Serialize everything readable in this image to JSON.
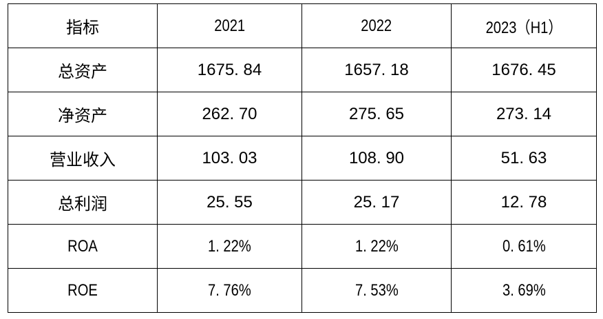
{
  "chart_data": {
    "type": "table",
    "title": "",
    "columns": [
      "指标",
      "2021",
      "2022",
      "2023（H1）"
    ],
    "rows": [
      {
        "label": "总资产",
        "values": [
          "1675. 84",
          "1657. 18",
          "1676. 45"
        ]
      },
      {
        "label": "净资产",
        "values": [
          "262. 70",
          "275. 65",
          "273. 14"
        ]
      },
      {
        "label": "营业收入",
        "values": [
          "103. 03",
          "108. 90",
          "51. 63"
        ]
      },
      {
        "label": "总利润",
        "values": [
          "25. 55",
          "25. 17",
          "12. 78"
        ]
      },
      {
        "label": "ROA",
        "values": [
          "1. 22%",
          "1. 22%",
          "0. 61%"
        ]
      },
      {
        "label": "ROE",
        "values": [
          "7. 76%",
          "7. 53%",
          "3. 69%"
        ]
      }
    ],
    "layout_hints": {
      "grid": "all-borders",
      "header_row": true,
      "align": "center"
    }
  },
  "colors": {
    "border": "#000000",
    "text": "#000000",
    "background": "#ffffff"
  }
}
